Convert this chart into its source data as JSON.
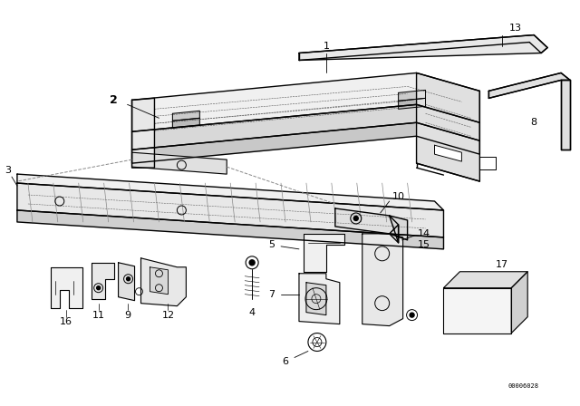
{
  "bg_color": "#ffffff",
  "line_color": "#000000",
  "figure_width": 6.4,
  "figure_height": 4.48,
  "dpi": 100,
  "watermark": "00006028",
  "lw_main": 1.0,
  "lw_thin": 0.5,
  "lw_dash": 0.4,
  "label_fs": 8,
  "label_bold_fs": 9
}
